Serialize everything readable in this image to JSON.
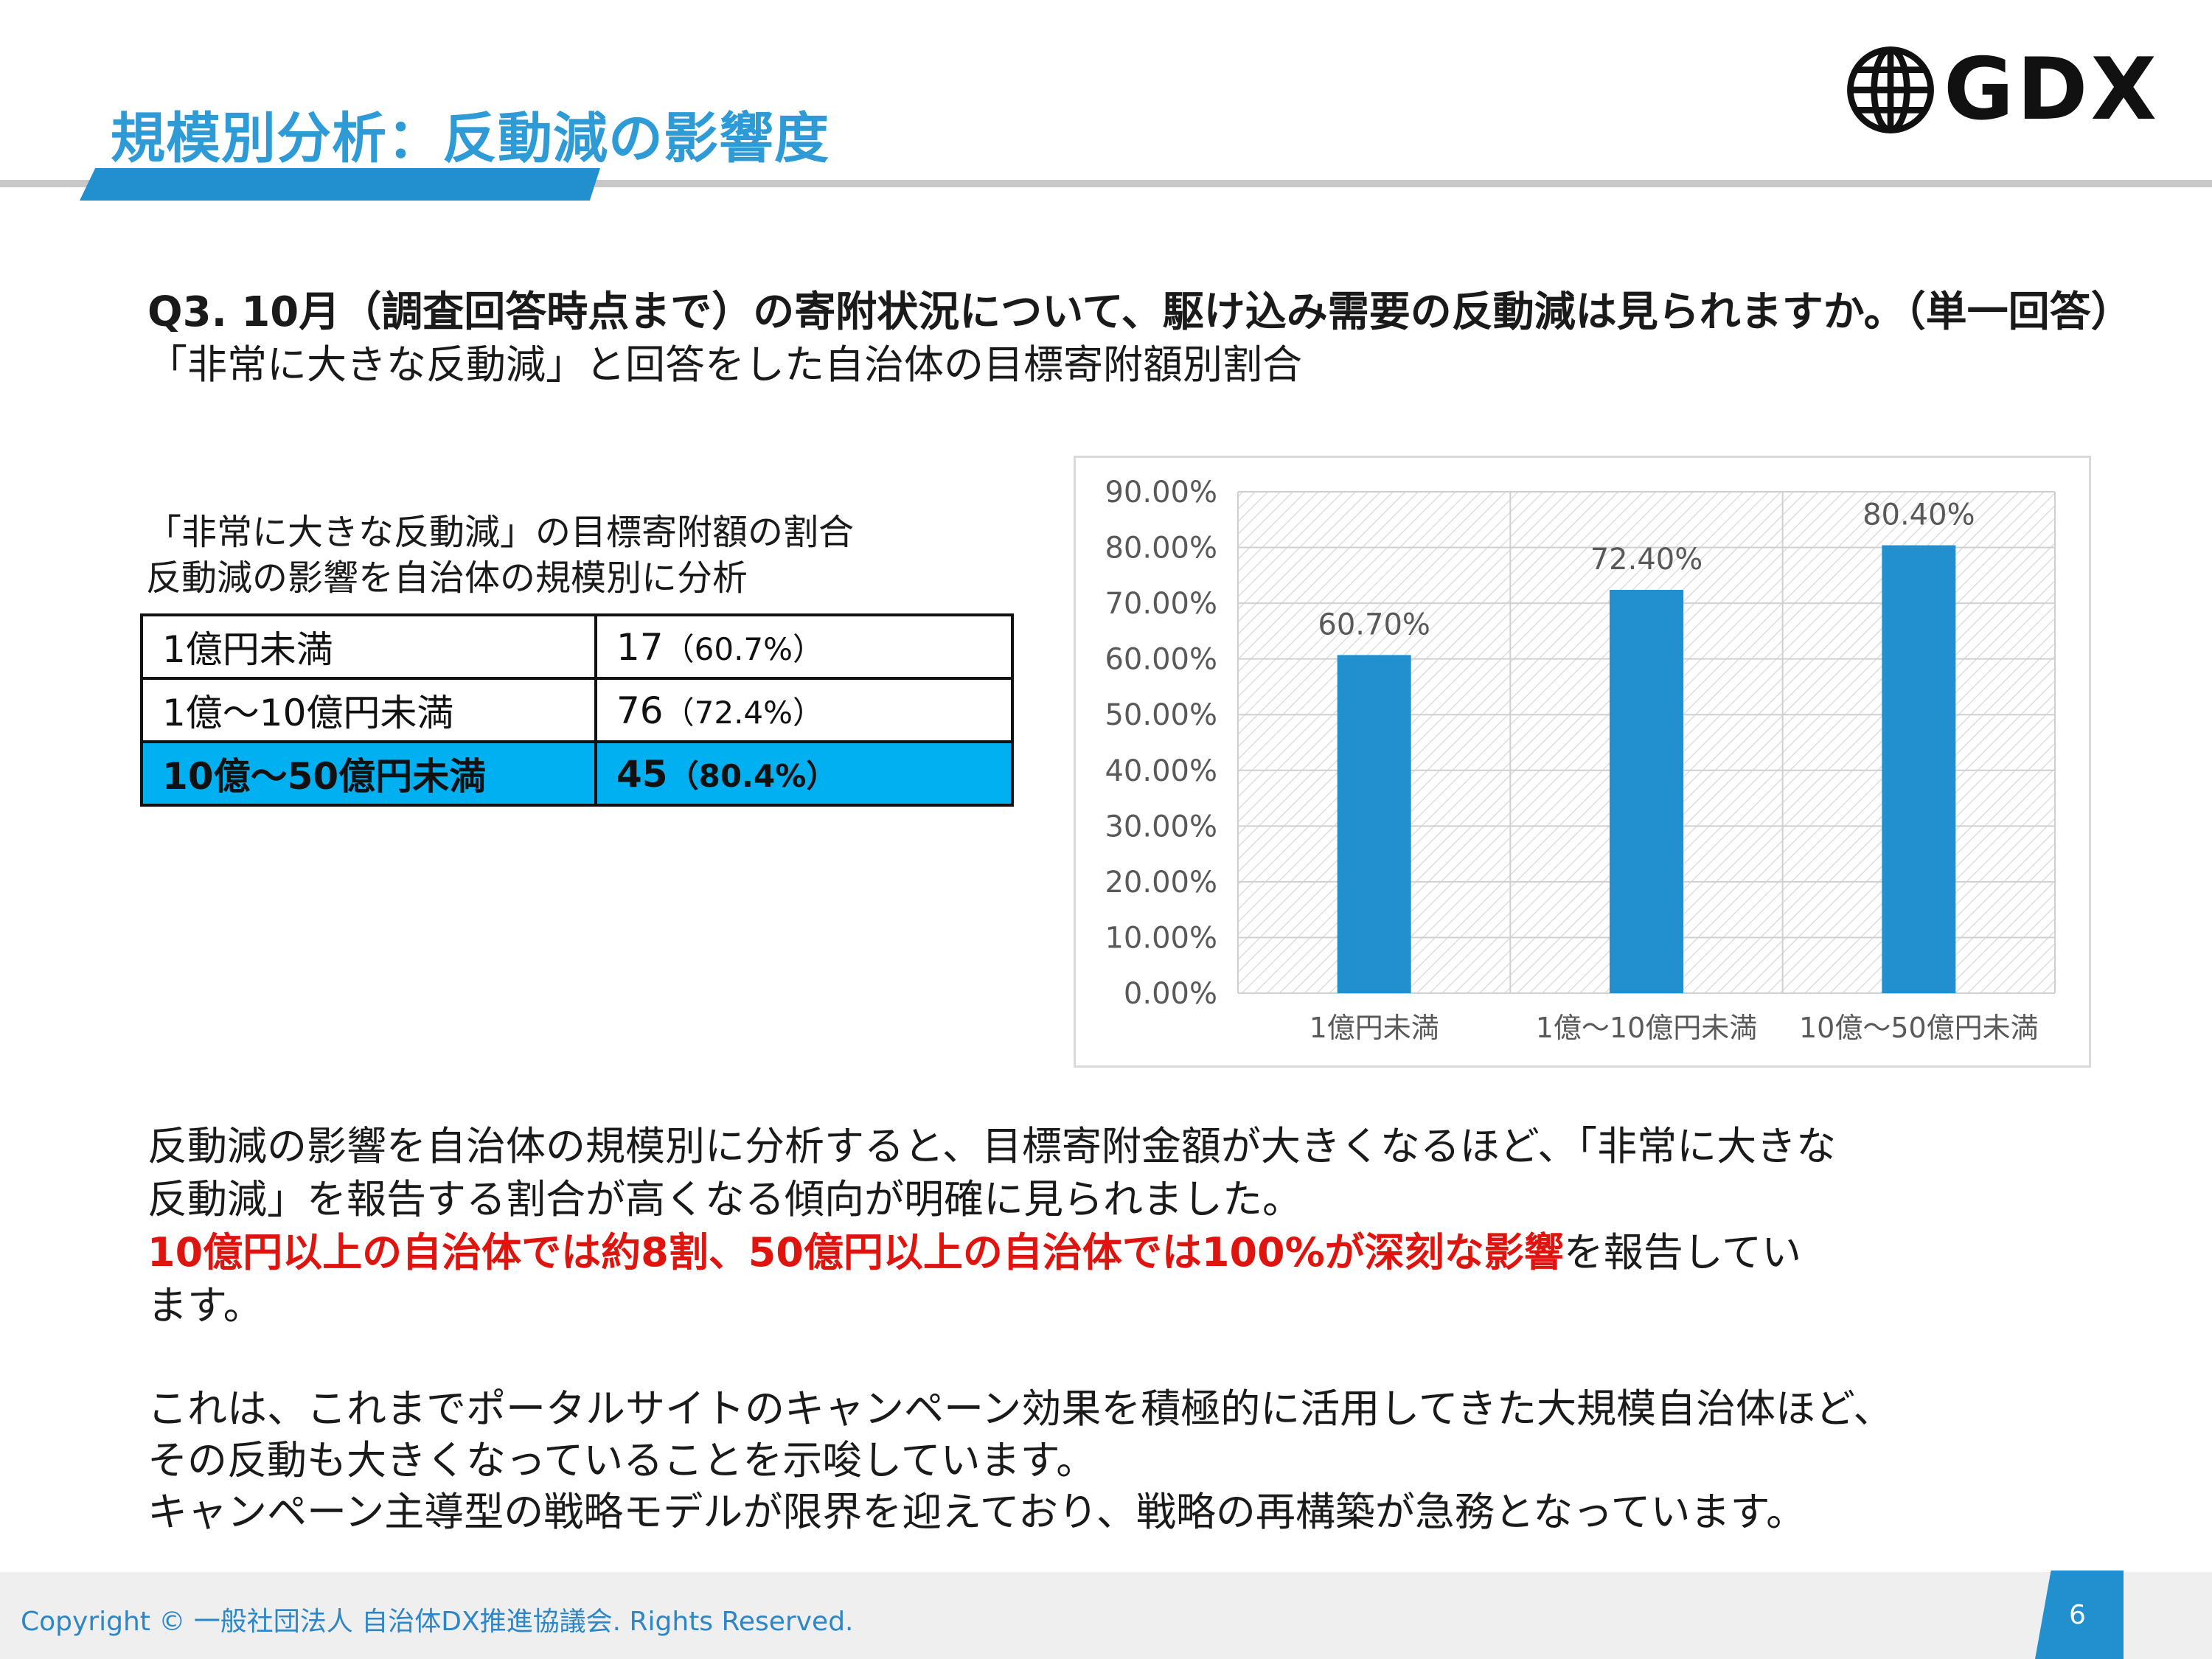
{
  "header": {
    "title": "規模別分析：反動減の影響度",
    "logo_text": "GDX"
  },
  "question": {
    "line1": "Q3. 10月（調査回答時点まで）の寄附状況について、駆け込み需要の反動減は見られますか。（単一回答）",
    "line2": "「非常に大きな反動減」と回答をした自治体の目標寄附額別割合"
  },
  "table": {
    "caption1": "「非常に大きな反動減」の目標寄附額の割合",
    "caption2": "反動減の影響を自治体の規模別に分析",
    "rows": [
      {
        "label": "1億円未満",
        "count": "17",
        "pct": "（60.7%）",
        "highlight": false
      },
      {
        "label": "1億～10億円未満",
        "count": "76",
        "pct": "（72.4%）",
        "highlight": false
      },
      {
        "label": "10億～50億円未満",
        "count": "45",
        "pct": "（80.4%）",
        "highlight": true
      }
    ]
  },
  "chart_data": {
    "type": "bar",
    "categories": [
      "1億円未満",
      "1億～10億円未満",
      "10億～50億円未満"
    ],
    "values": [
      60.7,
      72.4,
      80.4
    ],
    "data_labels": [
      "60.70%",
      "72.40%",
      "80.40%"
    ],
    "ylim": [
      0,
      90
    ],
    "yticks": [
      "0.00%",
      "10.00%",
      "20.00%",
      "30.00%",
      "40.00%",
      "50.00%",
      "60.00%",
      "70.00%",
      "80.00%",
      "90.00%"
    ],
    "title": "",
    "xlabel": "",
    "ylabel": "",
    "grid": true,
    "bar_color": "#2290cf"
  },
  "body": {
    "p1_line1": "反動減の影響を自治体の規模別に分析すると、目標寄附金額が大きくなるほど、「非常に大きな",
    "p1_line2": "反動減」を報告する割合が高くなる傾向が明確に見られました。",
    "p1_line3_red": "10億円以上の自治体では約8割、50億円以上の自治体では100%が深刻な影響",
    "p1_line3_rest": "を報告してい",
    "p1_line4": "ます。",
    "p2_line1": "これは、これまでポータルサイトのキャンペーン効果を積極的に活用してきた大規模自治体ほど、",
    "p2_line2": "その反動も大きくなっていることを示唆しています。",
    "p2_line3": "キャンペーン主導型の戦略モデルが限界を迎えており、戦略の再構築が急務となっています。"
  },
  "footer": {
    "copyright": "Copyright © 一般社団法人 自治体DX推進協議会. Rights Reserved.",
    "page": "6"
  },
  "colors": {
    "accent": "#2290cf",
    "highlight": "#00b0f0",
    "emphasis": "#e0140e"
  }
}
